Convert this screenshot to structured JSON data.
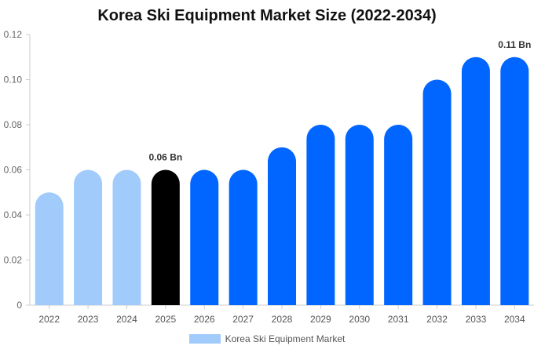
{
  "chart_data": {
    "type": "bar",
    "title": "Korea Ski Equipment Market Size (2022-2034)",
    "categories": [
      "2022",
      "2023",
      "2024",
      "2025",
      "2026",
      "2027",
      "2028",
      "2029",
      "2030",
      "2031",
      "2032",
      "2033",
      "2034"
    ],
    "series": [
      {
        "name": "Korea Ski Equipment Market",
        "values": [
          0.05,
          0.06,
          0.06,
          0.06,
          0.06,
          0.06,
          0.07,
          0.08,
          0.08,
          0.08,
          0.1,
          0.11,
          0.11
        ]
      }
    ],
    "bar_colors": [
      "#a0cbfb",
      "#a0cbfb",
      "#a0cbfb",
      "#000000",
      "#0066ff",
      "#0066ff",
      "#0066ff",
      "#0066ff",
      "#0066ff",
      "#0066ff",
      "#0066ff",
      "#0066ff",
      "#0066ff"
    ],
    "data_labels": [
      {
        "category": "2025",
        "text": "0.06 Bn"
      },
      {
        "category": "2034",
        "text": "0.11 Bn"
      }
    ],
    "yticks": [
      "0",
      "0.02",
      "0.04",
      "0.06",
      "0.08",
      "0.10",
      "0.12"
    ],
    "ylim": [
      0,
      0.12
    ],
    "grid": false,
    "legend_position": "bottom-center",
    "legend_color": "#a0cbfb"
  }
}
